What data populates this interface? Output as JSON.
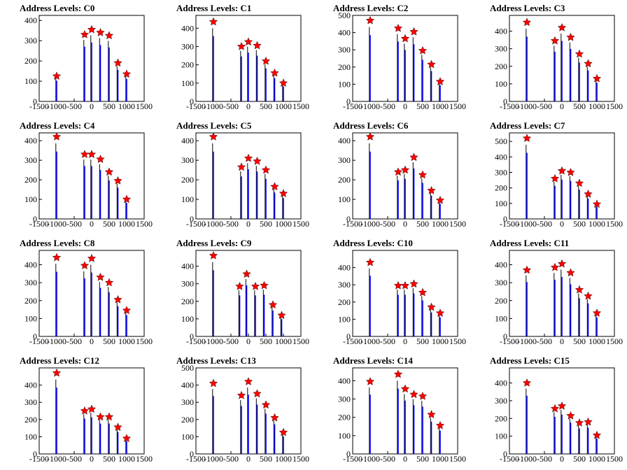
{
  "page": {
    "background": "#ffffff"
  },
  "style": {
    "frame_color": "#000000",
    "histogram_black": "#000000",
    "histogram_blue": "#0000ff",
    "marker_color": "#ff0000",
    "marker_shape": "star-icon"
  },
  "chart_data": [
    {
      "type": "histogram-peaks",
      "title": "Address Levels: C0",
      "xlim": [
        -1500,
        1500
      ],
      "ylim": [
        0,
        425
      ],
      "xticks": [
        "-1500",
        "-1000",
        "-500",
        "0",
        "500",
        "1000",
        "1500"
      ],
      "yticks": [
        "0",
        "100",
        "200",
        "300",
        "400"
      ],
      "peaks_x": [
        -1000,
        -200,
        0,
        250,
        500,
        750,
        1000
      ],
      "peak_values": [
        125,
        330,
        355,
        340,
        325,
        190,
        135
      ]
    },
    {
      "type": "histogram-peaks",
      "title": "Address Levels: C1",
      "xlim": [
        -1500,
        1500
      ],
      "ylim": [
        0,
        470
      ],
      "xticks": [
        "-1500",
        "-1000",
        "-500",
        "0",
        "500",
        "1000",
        "1500"
      ],
      "yticks": [
        "0",
        "100",
        "200",
        "300",
        "400"
      ],
      "peaks_x": [
        -1000,
        -200,
        0,
        250,
        500,
        750,
        1000
      ],
      "peak_values": [
        435,
        300,
        325,
        305,
        220,
        155,
        100
      ]
    },
    {
      "type": "histogram-peaks",
      "title": "Address Levels: C2",
      "xlim": [
        -1500,
        1500
      ],
      "ylim": [
        0,
        500
      ],
      "xticks": [
        "-1500",
        "-1000",
        "-500",
        "0",
        "500",
        "1000",
        "1500"
      ],
      "yticks": [
        "0",
        "100",
        "200",
        "300",
        "400",
        "500"
      ],
      "peaks_x": [
        -1000,
        -200,
        0,
        250,
        500,
        750,
        1000
      ],
      "peak_values": [
        470,
        425,
        365,
        405,
        295,
        215,
        115
      ]
    },
    {
      "type": "histogram-peaks",
      "title": "Address Levels: C3",
      "xlim": [
        -1500,
        1500
      ],
      "ylim": [
        0,
        490
      ],
      "xticks": [
        "-1500",
        "-1000",
        "-500",
        "0",
        "500",
        "1000",
        "1500"
      ],
      "yticks": [
        "0",
        "100",
        "200",
        "300",
        "400"
      ],
      "peaks_x": [
        -1000,
        -200,
        0,
        250,
        500,
        750,
        1000
      ],
      "peak_values": [
        450,
        345,
        420,
        365,
        270,
        215,
        130
      ]
    },
    {
      "type": "histogram-peaks",
      "title": "Address Levels: C4",
      "xlim": [
        -1500,
        1500
      ],
      "ylim": [
        0,
        440
      ],
      "xticks": [
        "-1500",
        "-1000",
        "-500",
        "0",
        "500",
        "1000",
        "1500"
      ],
      "yticks": [
        "0",
        "100",
        "200",
        "300",
        "400"
      ],
      "peaks_x": [
        -1000,
        -200,
        0,
        250,
        500,
        750,
        1000
      ],
      "peak_values": [
        420,
        330,
        330,
        305,
        240,
        195,
        100
      ]
    },
    {
      "type": "histogram-peaks",
      "title": "Address Levels: C5",
      "xlim": [
        -1500,
        1500
      ],
      "ylim": [
        0,
        440
      ],
      "xticks": [
        "-1500",
        "-1000",
        "-500",
        "0",
        "500",
        "1000",
        "1500"
      ],
      "yticks": [
        "0",
        "100",
        "200",
        "300",
        "400"
      ],
      "peaks_x": [
        -1000,
        -200,
        0,
        250,
        500,
        750,
        1000
      ],
      "peak_values": [
        420,
        265,
        310,
        295,
        250,
        165,
        130
      ]
    },
    {
      "type": "histogram-peaks",
      "title": "Address Levels: C6",
      "xlim": [
        -1500,
        1500
      ],
      "ylim": [
        0,
        440
      ],
      "xticks": [
        "-1500",
        "-1000",
        "-500",
        "0",
        "500",
        "1000",
        "1500"
      ],
      "yticks": [
        "0",
        "100",
        "200",
        "300",
        "400"
      ],
      "peaks_x": [
        -1000,
        -200,
        0,
        250,
        500,
        750,
        1000
      ],
      "peak_values": [
        420,
        240,
        250,
        315,
        225,
        145,
        95
      ]
    },
    {
      "type": "histogram-peaks",
      "title": "Address Levels: C7",
      "xlim": [
        -1500,
        1500
      ],
      "ylim": [
        0,
        555
      ],
      "xticks": [
        "-1500",
        "-1000",
        "-500",
        "0",
        "500",
        "1000",
        "1500"
      ],
      "yticks": [
        "0",
        "100",
        "200",
        "300",
        "400",
        "500"
      ],
      "peaks_x": [
        -1000,
        -200,
        0,
        250,
        500,
        750,
        1000
      ],
      "peak_values": [
        520,
        260,
        310,
        300,
        230,
        160,
        95
      ]
    },
    {
      "type": "histogram-peaks",
      "title": "Address Levels: C8",
      "xlim": [
        -1500,
        1500
      ],
      "ylim": [
        0,
        480
      ],
      "xticks": [
        "-1500",
        "-1000",
        "-500",
        "0",
        "500",
        "1000",
        "1500"
      ],
      "yticks": [
        "0",
        "100",
        "200",
        "300",
        "400"
      ],
      "peaks_x": [
        -1000,
        -200,
        0,
        250,
        500,
        750,
        1000
      ],
      "peak_values": [
        440,
        395,
        435,
        330,
        300,
        205,
        145
      ]
    },
    {
      "type": "histogram-peaks",
      "title": "Address Levels: C9",
      "xlim": [
        -1500,
        1500
      ],
      "ylim": [
        0,
        490
      ],
      "xticks": [
        "-1500",
        "-1000",
        "-500",
        "0",
        "500",
        "1000",
        "1500"
      ],
      "yticks": [
        "0",
        "100",
        "200",
        "300",
        "400"
      ],
      "peaks_x": [
        -1000,
        -250,
        -50,
        200,
        450,
        700,
        950
      ],
      "peak_values": [
        460,
        285,
        355,
        285,
        290,
        180,
        120
      ]
    },
    {
      "type": "histogram-peaks",
      "title": "Address Levels: C10",
      "xlim": [
        -1500,
        1500
      ],
      "ylim": [
        0,
        500
      ],
      "xticks": [
        "-1500",
        "-1000",
        "-500",
        "0",
        "500",
        "1000",
        "1500"
      ],
      "yticks": [
        "0",
        "100",
        "200",
        "300",
        "400"
      ],
      "peaks_x": [
        -1000,
        -200,
        0,
        250,
        500,
        750,
        1000
      ],
      "peak_values": [
        430,
        295,
        295,
        305,
        255,
        170,
        135
      ]
    },
    {
      "type": "histogram-peaks",
      "title": "Address Levels: C11",
      "xlim": [
        -1500,
        1500
      ],
      "ylim": [
        0,
        480
      ],
      "xticks": [
        "-1500",
        "-1000",
        "-500",
        "0",
        "500",
        "1000",
        "1500"
      ],
      "yticks": [
        "0",
        "100",
        "200",
        "300",
        "400"
      ],
      "peaks_x": [
        -1000,
        -200,
        0,
        250,
        500,
        750,
        1000
      ],
      "peak_values": [
        370,
        385,
        405,
        355,
        260,
        225,
        130
      ]
    },
    {
      "type": "histogram-peaks",
      "title": "Address Levels: C12",
      "xlim": [
        -1500,
        1500
      ],
      "ylim": [
        0,
        500
      ],
      "xticks": [
        "-1500",
        "-1000",
        "-500",
        "0",
        "500",
        "1000",
        "1500"
      ],
      "yticks": [
        "0",
        "100",
        "200",
        "300",
        "400"
      ],
      "peaks_x": [
        -1000,
        -200,
        0,
        250,
        500,
        750,
        1000
      ],
      "peak_values": [
        470,
        250,
        260,
        215,
        215,
        155,
        90
      ]
    },
    {
      "type": "histogram-peaks",
      "title": "Address Levels: C13",
      "xlim": [
        -1500,
        1500
      ],
      "ylim": [
        0,
        500
      ],
      "xticks": [
        "-1500",
        "-1000",
        "-500",
        "0",
        "500",
        "1000",
        "1500"
      ],
      "yticks": [
        "0",
        "100",
        "200",
        "300",
        "400",
        "500"
      ],
      "peaks_x": [
        -1000,
        -200,
        0,
        250,
        500,
        750,
        1000
      ],
      "peak_values": [
        410,
        340,
        420,
        350,
        285,
        210,
        125
      ]
    },
    {
      "type": "histogram-peaks",
      "title": "Address Levels: C14",
      "xlim": [
        -1500,
        1500
      ],
      "ylim": [
        0,
        470
      ],
      "xticks": [
        "-1500",
        "-1000",
        "-500",
        "0",
        "500",
        "1000",
        "1500"
      ],
      "yticks": [
        "0",
        "100",
        "200",
        "300",
        "400"
      ],
      "peaks_x": [
        -1000,
        -200,
        0,
        250,
        500,
        750,
        1000
      ],
      "peak_values": [
        395,
        435,
        355,
        325,
        315,
        215,
        155
      ]
    },
    {
      "type": "histogram-peaks",
      "title": "Address Levels: C15",
      "xlim": [
        -1500,
        1500
      ],
      "ylim": [
        0,
        485
      ],
      "xticks": [
        "-1500",
        "-1000",
        "-500",
        "0",
        "500",
        "1000",
        "1500"
      ],
      "yticks": [
        "0",
        "100",
        "200",
        "300",
        "400"
      ],
      "peaks_x": [
        -1000,
        -200,
        0,
        250,
        500,
        750,
        1000
      ],
      "peak_values": [
        400,
        255,
        270,
        215,
        175,
        180,
        105
      ]
    }
  ]
}
